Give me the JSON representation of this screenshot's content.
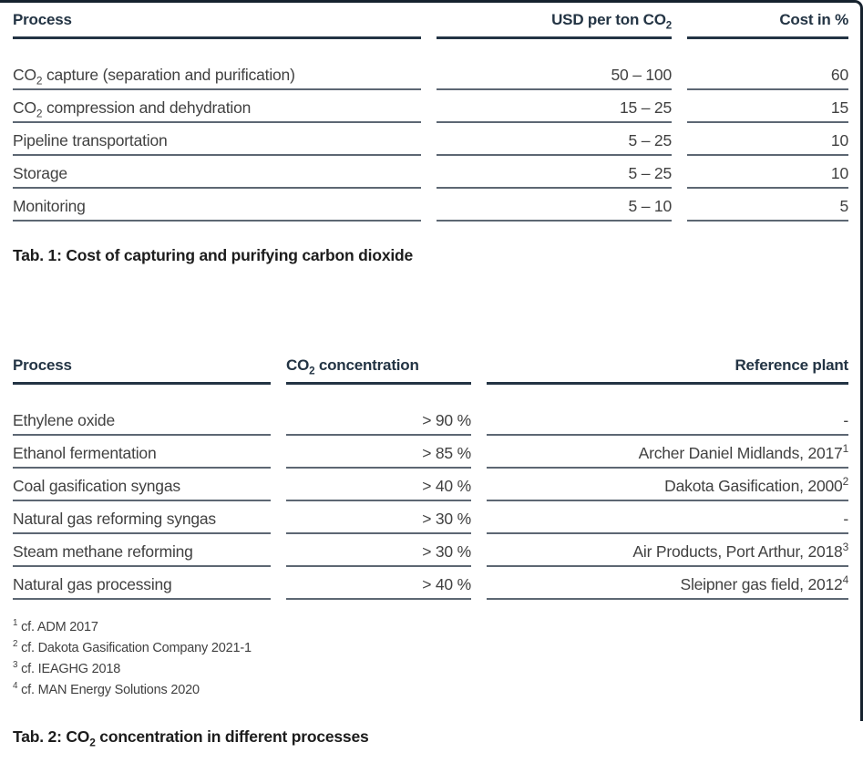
{
  "colors": {
    "navy": "#233444",
    "rule_gray": "#5d6773",
    "text": "#414141",
    "caption": "#1c1c1c",
    "frame": "#16222e"
  },
  "table1": {
    "columns": [
      "Process",
      "USD per ton CO₂",
      "Cost in %"
    ],
    "rows": [
      [
        "CO₂ capture (separation and purification)",
        "50 – 100",
        "60"
      ],
      [
        "CO₂ compression and dehydration",
        "15 – 25",
        "15"
      ],
      [
        "Pipeline transportation",
        "5 – 25",
        "10"
      ],
      [
        "Storage",
        "5 – 25",
        "10"
      ],
      [
        "Monitoring",
        "5 – 10",
        "5"
      ]
    ],
    "caption": "Tab. 1: Cost of capturing and purifying carbon dioxide"
  },
  "table2": {
    "columns": [
      "Process",
      "CO₂ concentration",
      "Reference plant"
    ],
    "rows": [
      [
        "Ethylene oxide",
        "> 90 %",
        "-"
      ],
      [
        "Ethanol fermentation",
        "> 85 %",
        "Archer Daniel Midlands, 2017¹"
      ],
      [
        "Coal gasification syngas",
        "> 40 %",
        "Dakota Gasification, 2000²"
      ],
      [
        "Natural gas reforming syngas",
        "> 30 %",
        "-"
      ],
      [
        "Steam methane reforming",
        "> 30 %",
        "Air Products, Port Arthur, 2018³"
      ],
      [
        "Natural gas processing",
        "> 40 %",
        "Sleipner gas field, 2012⁴"
      ]
    ],
    "footnotes": [
      "¹ cf. ADM 2017",
      "² cf. Dakota Gasification Company 2021-1",
      "³ cf. IEAGHG 2018",
      "⁴ cf. MAN Energy Solutions 2020"
    ],
    "caption": "Tab. 2: CO₂ concentration in different processes"
  }
}
